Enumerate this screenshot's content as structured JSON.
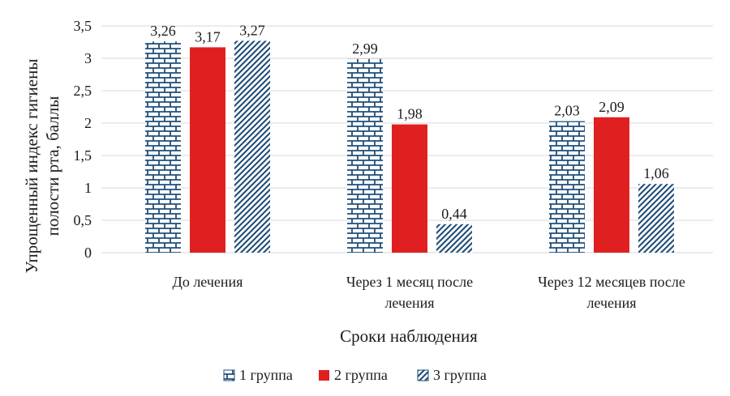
{
  "chart_data": {
    "type": "bar",
    "title": "",
    "xlabel": "Сроки наблюдения",
    "ylabel_lines": [
      "Упрощенный индекс гигиены",
      "полости рта, баллы"
    ],
    "ylim": [
      0,
      3.5
    ],
    "y_ticks": [
      "0",
      "0,5",
      "1",
      "1,5",
      "2",
      "2,5",
      "3",
      "3,5"
    ],
    "y_tick_values": [
      0,
      0.5,
      1,
      1.5,
      2,
      2.5,
      3,
      3.5
    ],
    "categories": [
      [
        "До  лечения"
      ],
      [
        "Через 1 месяц после",
        "лечения"
      ],
      [
        "Через 12 месяцев после",
        "лечения"
      ]
    ],
    "series": [
      {
        "name": "1 группа",
        "pattern": "brick",
        "values": [
          3.26,
          2.99,
          2.03
        ],
        "labels": [
          "3,26",
          "2,99",
          "2,03"
        ]
      },
      {
        "name": "2 группа",
        "pattern": "solid",
        "values": [
          3.17,
          1.98,
          2.09
        ],
        "labels": [
          "3,17",
          "1,98",
          "2,09"
        ]
      },
      {
        "name": "3 группа",
        "pattern": "diagonal",
        "values": [
          3.27,
          0.44,
          1.06
        ],
        "labels": [
          "3,27",
          "0,44",
          "1,06"
        ]
      }
    ],
    "grid": true,
    "legend_position": "bottom",
    "colors": {
      "brick": "#1f4e79",
      "solid": "#e02020",
      "diagonal": "#1f4e79",
      "grid": "#d9d9d9",
      "text": "#1b1b1b"
    }
  }
}
